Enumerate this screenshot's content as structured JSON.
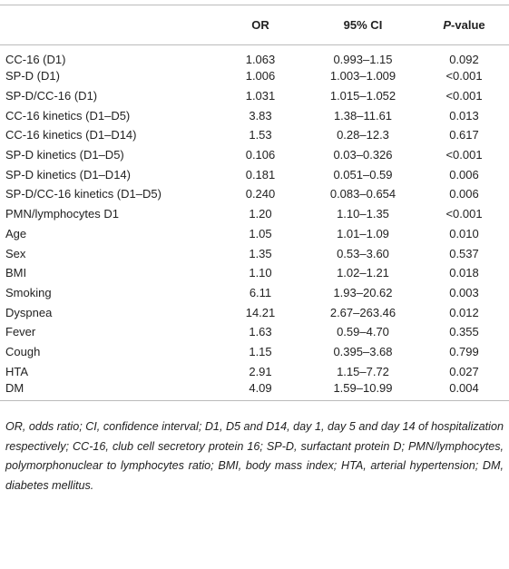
{
  "table": {
    "header": [
      "OR",
      "95% CI",
      {
        "italic": "P",
        "rest": "-value"
      }
    ],
    "rows": [
      [
        "CC-16 (D1)",
        "1.063",
        "0.993–1.15",
        "0.092"
      ],
      [
        "SP-D (D1)",
        "1.006",
        "1.003–1.009",
        "<0.001"
      ],
      [
        "SP-D/CC-16 (D1)",
        "1.031",
        "1.015–1.052",
        "<0.001"
      ],
      [
        "CC-16 kinetics (D1–D5)",
        "3.83",
        "1.38–11.61",
        "0.013"
      ],
      [
        "CC-16 kinetics (D1–D14)",
        "1.53",
        "0.28–12.3",
        "0.617"
      ],
      [
        "SP-D kinetics (D1–D5)",
        "0.106",
        "0.03–0.326",
        "<0.001"
      ],
      [
        "SP-D kinetics (D1–D14)",
        "0.181",
        "0.051–0.59",
        "0.006"
      ],
      [
        "SP-D/CC-16 kinetics (D1–D5)",
        "0.240",
        "0.083–0.654",
        "0.006"
      ],
      [
        "PMN/lymphocytes D1",
        "1.20",
        "1.10–1.35",
        "<0.001"
      ],
      [
        "Age",
        "1.05",
        "1.01–1.09",
        "0.010"
      ],
      [
        "Sex",
        "1.35",
        "0.53–3.60",
        "0.537"
      ],
      [
        "BMI",
        "1.10",
        "1.02–1.21",
        "0.018"
      ],
      [
        "Smoking",
        "6.11",
        "1.93–20.62",
        "0.003"
      ],
      [
        "Dyspnea",
        "14.21",
        "2.67–263.46",
        "0.012"
      ],
      [
        "Fever",
        "1.63",
        "0.59–4.70",
        "0.355"
      ],
      [
        "Cough",
        "1.15",
        "0.395–3.68",
        "0.799"
      ],
      [
        "HTA",
        "2.91",
        "1.15–7.72",
        "0.027"
      ],
      [
        "DM",
        "4.09",
        "1.59–10.99",
        "0.004"
      ]
    ],
    "footnote": "OR, odds ratio; CI, confidence interval; D1, D5 and D14, day 1, day 5 and day 14 of hospitalization respectively; CC-16, club cell secretory protein 16; SP-D, surfactant protein D; PMN/lymphocytes, polymorphonuclear to lymphocytes ratio; BMI, body mass index; HTA, arterial hypertension; DM, diabetes mellitus."
  }
}
